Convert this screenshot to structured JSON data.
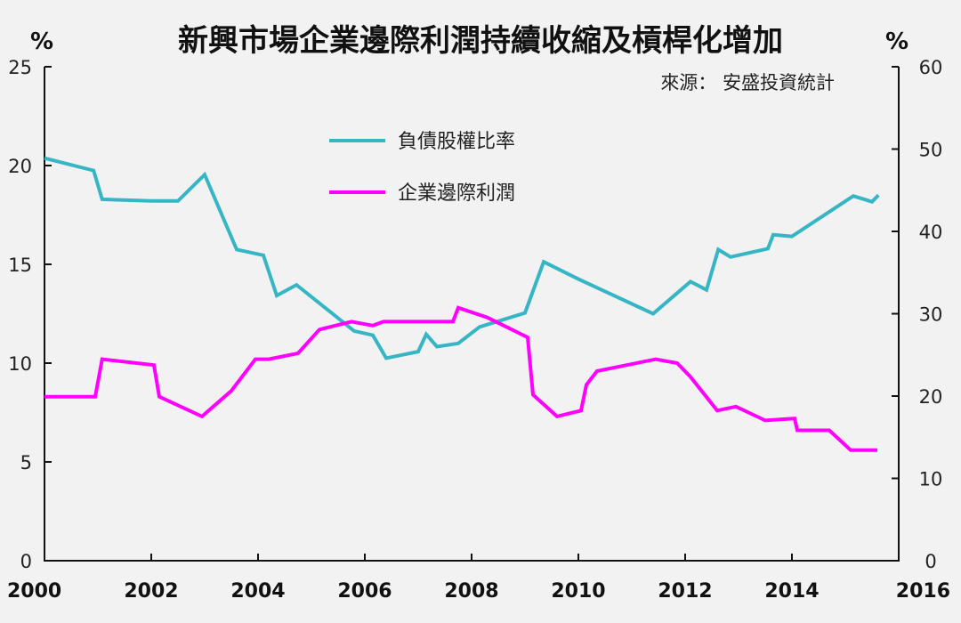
{
  "chart_data": {
    "type": "line",
    "title": "新興市場企業邊際利潤持續收縮及槓桿化增加",
    "source": "來源： 安盛投資統計",
    "left_unit": "%",
    "right_unit": "%",
    "left_axis": {
      "min": 0,
      "max": 25,
      "ticks": [
        "0",
        "5",
        "10",
        "15",
        "20",
        "25"
      ]
    },
    "right_axis": {
      "min": 0,
      "max": 60,
      "ticks": [
        "0",
        "10",
        "20",
        "30",
        "40",
        "50",
        "60"
      ]
    },
    "x_axis": {
      "min": 2000,
      "max": 2016,
      "ticks": [
        "2000",
        "2002",
        "2004",
        "2006",
        "2008",
        "2010",
        "2012",
        "2014",
        "2016"
      ]
    },
    "series": [
      {
        "name": "負債股權比率",
        "axis": "right",
        "color": "#36b5c5",
        "points": [
          [
            2000.0,
            48.9
          ],
          [
            2000.92,
            47.4
          ],
          [
            2001.08,
            43.9
          ],
          [
            2002.0,
            43.7
          ],
          [
            2002.5,
            43.7
          ],
          [
            2003.0,
            46.9
          ],
          [
            2003.6,
            37.8
          ],
          [
            2004.1,
            37.1
          ],
          [
            2004.35,
            32.2
          ],
          [
            2004.72,
            33.5
          ],
          [
            2005.8,
            27.9
          ],
          [
            2006.15,
            27.4
          ],
          [
            2006.4,
            24.6
          ],
          [
            2007.0,
            25.4
          ],
          [
            2007.15,
            27.5
          ],
          [
            2007.35,
            26.0
          ],
          [
            2007.75,
            26.4
          ],
          [
            2008.15,
            28.4
          ],
          [
            2009.0,
            30.1
          ],
          [
            2009.35,
            36.3
          ],
          [
            2010.0,
            34.2
          ],
          [
            2011.4,
            30.0
          ],
          [
            2012.1,
            33.9
          ],
          [
            2012.4,
            32.9
          ],
          [
            2012.62,
            37.8
          ],
          [
            2012.85,
            36.9
          ],
          [
            2013.55,
            37.9
          ],
          [
            2013.65,
            39.6
          ],
          [
            2014.0,
            39.4
          ],
          [
            2015.15,
            44.3
          ],
          [
            2015.5,
            43.6
          ],
          [
            2015.62,
            44.4
          ]
        ]
      },
      {
        "name": "企業邊際利潤",
        "axis": "left",
        "color": "#ff00ff",
        "points": [
          [
            2000.0,
            8.3
          ],
          [
            2000.95,
            8.3
          ],
          [
            2001.08,
            10.2
          ],
          [
            2002.05,
            9.9
          ],
          [
            2002.15,
            8.3
          ],
          [
            2002.95,
            7.3
          ],
          [
            2003.5,
            8.6
          ],
          [
            2003.95,
            10.2
          ],
          [
            2004.2,
            10.2
          ],
          [
            2004.75,
            10.5
          ],
          [
            2005.15,
            11.7
          ],
          [
            2005.75,
            12.1
          ],
          [
            2006.15,
            11.9
          ],
          [
            2006.35,
            12.1
          ],
          [
            2007.65,
            12.1
          ],
          [
            2007.75,
            12.8
          ],
          [
            2008.3,
            12.3
          ],
          [
            2009.05,
            11.3
          ],
          [
            2009.15,
            8.4
          ],
          [
            2009.6,
            7.3
          ],
          [
            2010.05,
            7.6
          ],
          [
            2010.15,
            8.9
          ],
          [
            2010.35,
            9.6
          ],
          [
            2011.45,
            10.2
          ],
          [
            2011.85,
            10.0
          ],
          [
            2012.1,
            9.3
          ],
          [
            2012.6,
            7.6
          ],
          [
            2012.95,
            7.8
          ],
          [
            2013.5,
            7.1
          ],
          [
            2014.05,
            7.2
          ],
          [
            2014.1,
            6.6
          ],
          [
            2014.7,
            6.6
          ],
          [
            2015.1,
            5.6
          ],
          [
            2015.6,
            5.6
          ]
        ]
      }
    ],
    "legend_position": "top-center",
    "grid": false
  }
}
